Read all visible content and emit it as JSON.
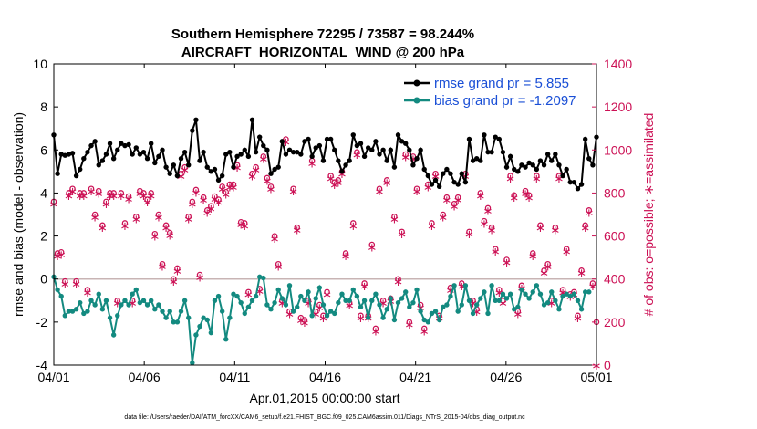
{
  "chart_data": {
    "type": "line",
    "title": "Southern Hemisphere 72295 / 73587 = 98.244%",
    "subtitle": "AIRCRAFT_HORIZONTAL_WIND @ 200 hPa",
    "xlabel": "Apr.01,2015 00:00:00 start",
    "ylabel": "rmse and bias (model - observation)",
    "ylabel_right": "# of obs: o=possible; ∗=assimilated",
    "footnote": "data file: /Users/raeder/DAI/ATM_forcXX/CAM6_setup/f.e21.FHIST_BGC.f09_025.CAM6assim.011/Diags_NTrS_2015-04/obs_diag_output.nc",
    "x_ticks": [
      "04/01",
      "04/06",
      "04/11",
      "04/16",
      "04/21",
      "04/26",
      "05/01"
    ],
    "y_ticks": [
      "-4",
      "-2",
      "0",
      "2",
      "4",
      "6",
      "8",
      "10"
    ],
    "y_right_ticks": [
      "0",
      "200",
      "400",
      "600",
      "800",
      "1000",
      "1200",
      "1400"
    ],
    "ylim": [
      -4,
      10
    ],
    "ylim_right": [
      0,
      1400
    ],
    "xlim_days": [
      0,
      30
    ],
    "grid": false,
    "legend_position": "top-right",
    "colors": {
      "rmse": "#000000",
      "bias": "#138a80",
      "counts": "#cc1155",
      "zero_line": "#c8b4b4",
      "legend_text": "#1a4fd6"
    },
    "series": [
      {
        "name": "rmse grand pr = 5.855",
        "values": [
          6.7,
          4.9,
          5.8,
          5.75,
          5.8,
          5.85,
          4.8,
          5.1,
          5.6,
          5.9,
          6.2,
          6.4,
          5.3,
          5.5,
          5.8,
          6.3,
          5.6,
          6.0,
          6.3,
          6.2,
          6.25,
          5.8,
          6.1,
          5.8,
          5.9,
          5.6,
          6.3,
          5.4,
          5.7,
          6.0,
          5.2,
          4.9,
          5.3,
          4.8,
          5.6,
          5.9,
          5.3,
          6.9,
          7.4,
          5.5,
          5.9,
          5.2,
          5.0,
          5.1,
          4.6,
          4.8,
          5.8,
          5.9,
          5.2,
          5.7,
          5.8,
          6.0,
          5.7,
          7.4,
          5.9,
          6.6,
          6.2,
          6.0,
          4.9,
          5.1,
          5.2,
          6.4,
          5.8,
          6.0,
          5.9,
          5.9,
          5.8,
          6.4,
          6.5,
          5.7,
          6.1,
          6.2,
          5.5,
          6.5,
          6.5,
          6.0,
          5.5,
          5.0,
          5.3,
          5.5,
          6.7,
          6.2,
          6.3,
          5.7,
          6.1,
          6.0,
          6.4,
          5.8,
          6.0,
          5.5,
          6.0,
          5.2,
          6.7,
          6.4,
          6.3,
          6.0,
          5.3,
          5.6,
          6.0,
          5.1,
          4.8,
          4.4,
          4.6,
          4.3,
          4.9,
          5.1,
          4.9,
          4.5,
          4.4,
          4.9,
          4.5,
          6.5,
          5.5,
          5.6,
          5.5,
          6.7,
          5.9,
          5.9,
          6.6,
          6.5,
          5.9,
          5.2,
          5.7,
          5.1,
          5.0,
          5.3,
          5.2,
          5.4,
          5.3,
          5.1,
          5.5,
          5.3,
          5.8,
          5.5,
          5.8,
          5.3,
          4.8,
          5.1,
          4.5,
          4.5,
          4.2,
          4.4,
          6.5,
          5.6,
          5.3,
          6.6
        ]
      },
      {
        "name": "bias grand pr = -1.2097",
        "values": [
          0.1,
          -0.5,
          -0.8,
          -1.7,
          -1.5,
          -1.5,
          -1.4,
          -1.1,
          -1.6,
          -1.5,
          -1.0,
          -1.2,
          -0.7,
          -1.4,
          -1.0,
          -1.8,
          -2.6,
          -1.7,
          -1.2,
          -1.0,
          -1.2,
          -0.7,
          -0.5,
          -1.1,
          -1.0,
          -1.2,
          -1.0,
          -1.4,
          -1.2,
          -1.5,
          -1.8,
          -1.5,
          -2.0,
          -2.0,
          -1.5,
          -1.0,
          -1.8,
          -3.9,
          -2.6,
          -2.2,
          -1.8,
          -1.9,
          -2.5,
          -1.0,
          -0.8,
          -1.5,
          -2.8,
          -1.8,
          -0.7,
          -0.8,
          -1.1,
          -1.6,
          -1.3,
          -1.0,
          -0.8,
          0.1,
          0.05,
          -1.2,
          -1.4,
          -1.1,
          -0.5,
          -0.9,
          -1.2,
          -0.3,
          -1.5,
          -1.3,
          -0.8,
          -1.0,
          -0.6,
          -1.7,
          -0.9,
          -0.4,
          -1.2,
          -1.7,
          -1.5,
          -1.6,
          -1.1,
          -0.7,
          -1.0,
          -1.0,
          -0.5,
          -0.8,
          -1.3,
          -1.0,
          -1.8,
          -1.0,
          -0.7,
          -1.2,
          -1.8,
          -1.4,
          -0.9,
          -1.9,
          -1.1,
          -0.9,
          -0.6,
          -1.3,
          -1.1,
          -0.5,
          -1.5,
          -1.9,
          -2.0,
          -1.6,
          -1.5,
          -1.9,
          -1.3,
          -1.2,
          -0.8,
          -0.3,
          -1.5,
          -1.2,
          -0.3,
          -1.0,
          -1.6,
          -1.2,
          -0.9,
          -0.6,
          -1.6,
          -0.3,
          -1.0,
          -1.0,
          -0.7,
          -0.9,
          -0.7,
          -1.4,
          -1.3,
          -0.5,
          -0.7,
          -0.9,
          -0.6,
          -0.3,
          -0.7,
          -1.2,
          -1.1,
          -0.6,
          -1.0,
          -1.4,
          -0.8,
          -0.7,
          -0.8,
          -0.7,
          -1.0,
          -1.4,
          -0.6,
          -0.6
        ]
      },
      {
        "name": "possible",
        "values": [
          760,
          520,
          525,
          390,
          800,
          820,
          390,
          800,
          800,
          350,
          820,
          700,
          810,
          650,
          760,
          800,
          800,
          300,
          800,
          660,
          785,
          300,
          690,
          810,
          800,
          770,
          800,
          610,
          700,
          470,
          650,
          615,
          400,
          450,
          890,
          920,
          690,
          760,
          815,
          420,
          780,
          720,
          740,
          785,
          770,
          830,
          805,
          840,
          840,
          930,
          665,
          660,
          340,
          890,
          920,
          355,
          970,
          870,
          830,
          600,
          470,
          300,
          1050,
          250,
          820,
          640,
          220,
          210,
          300,
          950,
          250,
          280,
          230,
          340,
          880,
          850,
          860,
          900,
          520,
          290,
          660,
          990,
          230,
          380,
          230,
          560,
          170,
          820,
          300,
          860,
          310,
          690,
          400,
          620,
          980,
          200,
          970,
          820,
          280,
          170,
          840,
          660,
          890,
          230,
          700,
          780,
          360,
          750,
          780,
          380,
          890,
          620,
          300,
          260,
          800,
          670,
          730,
          640,
          540,
          350,
          300,
          490,
          880,
          790,
          250,
          370,
          810,
          790,
          520,
          880,
          650,
          440,
          470,
          300,
          640,
          880,
          350,
          540,
          330,
          340,
          230,
          440,
          650,
          720,
          380,
          200
        ]
      },
      {
        "name": "assimilated",
        "values": [
          750,
          510,
          515,
          380,
          790,
          810,
          380,
          790,
          790,
          340,
          810,
          690,
          800,
          640,
          750,
          790,
          790,
          290,
          790,
          650,
          775,
          290,
          680,
          800,
          790,
          760,
          790,
          600,
          690,
          460,
          640,
          605,
          390,
          440,
          880,
          910,
          680,
          750,
          805,
          410,
          770,
          710,
          730,
          775,
          760,
          820,
          795,
          830,
          830,
          920,
          655,
          650,
          330,
          880,
          910,
          345,
          960,
          860,
          820,
          590,
          460,
          290,
          1040,
          240,
          810,
          630,
          210,
          200,
          290,
          940,
          240,
          270,
          220,
          330,
          870,
          840,
          850,
          890,
          510,
          280,
          650,
          980,
          220,
          370,
          220,
          550,
          160,
          810,
          290,
          850,
          300,
          680,
          390,
          610,
          970,
          190,
          960,
          810,
          270,
          160,
          830,
          650,
          880,
          220,
          690,
          770,
          350,
          740,
          770,
          370,
          880,
          610,
          290,
          250,
          790,
          660,
          720,
          630,
          530,
          340,
          290,
          480,
          870,
          780,
          240,
          360,
          800,
          780,
          510,
          870,
          640,
          430,
          460,
          290,
          630,
          870,
          340,
          530,
          320,
          330,
          220,
          430,
          640,
          710,
          370,
          0
        ]
      }
    ]
  }
}
